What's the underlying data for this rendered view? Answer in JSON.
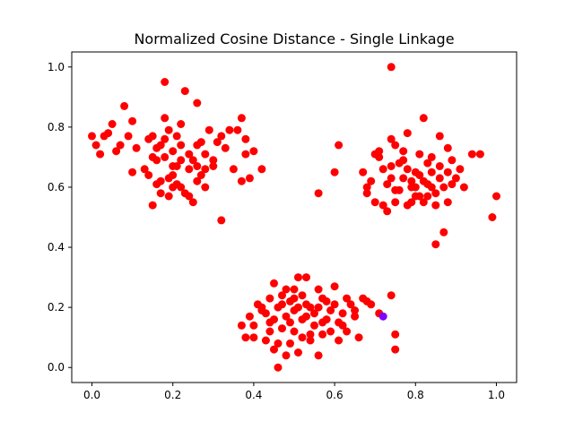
{
  "chart_data": {
    "type": "scatter",
    "title": "Normalized Cosine Distance - Single Linkage",
    "xlabel": "",
    "ylabel": "",
    "xlim": [
      -0.05,
      1.05
    ],
    "ylim": [
      -0.05,
      1.05
    ],
    "xticks": [
      "0.0",
      "0.2",
      "0.4",
      "0.6",
      "0.8",
      "1.0"
    ],
    "yticks": [
      "0.0",
      "0.2",
      "0.4",
      "0.6",
      "0.8",
      "1.0"
    ],
    "grid": false,
    "legend": "none",
    "series": [
      {
        "color": "#ff0000",
        "points": [
          [
            0.0,
            0.77
          ],
          [
            0.01,
            0.74
          ],
          [
            0.02,
            0.71
          ],
          [
            0.03,
            0.77
          ],
          [
            0.04,
            0.78
          ],
          [
            0.05,
            0.81
          ],
          [
            0.06,
            0.72
          ],
          [
            0.07,
            0.74
          ],
          [
            0.08,
            0.87
          ],
          [
            0.09,
            0.77
          ],
          [
            0.1,
            0.82
          ],
          [
            0.11,
            0.73
          ],
          [
            0.1,
            0.65
          ],
          [
            0.13,
            0.66
          ],
          [
            0.14,
            0.76
          ],
          [
            0.15,
            0.7
          ],
          [
            0.15,
            0.77
          ],
          [
            0.16,
            0.69
          ],
          [
            0.17,
            0.62
          ],
          [
            0.18,
            0.83
          ],
          [
            0.18,
            0.95
          ],
          [
            0.19,
            0.79
          ],
          [
            0.2,
            0.72
          ],
          [
            0.2,
            0.67
          ],
          [
            0.21,
            0.77
          ],
          [
            0.22,
            0.74
          ],
          [
            0.22,
            0.81
          ],
          [
            0.23,
            0.92
          ],
          [
            0.24,
            0.66
          ],
          [
            0.25,
            0.69
          ],
          [
            0.26,
            0.88
          ],
          [
            0.27,
            0.64
          ],
          [
            0.27,
            0.75
          ],
          [
            0.28,
            0.71
          ],
          [
            0.29,
            0.79
          ],
          [
            0.3,
            0.67
          ],
          [
            0.31,
            0.75
          ],
          [
            0.32,
            0.77
          ],
          [
            0.33,
            0.73
          ],
          [
            0.34,
            0.79
          ],
          [
            0.35,
            0.66
          ],
          [
            0.36,
            0.79
          ],
          [
            0.37,
            0.62
          ],
          [
            0.37,
            0.83
          ],
          [
            0.38,
            0.71
          ],
          [
            0.38,
            0.76
          ],
          [
            0.39,
            0.63
          ],
          [
            0.4,
            0.72
          ],
          [
            0.42,
            0.66
          ],
          [
            0.32,
            0.49
          ],
          [
            0.15,
            0.54
          ],
          [
            0.16,
            0.61
          ],
          [
            0.17,
            0.58
          ],
          [
            0.19,
            0.57
          ],
          [
            0.2,
            0.6
          ],
          [
            0.21,
            0.61
          ],
          [
            0.23,
            0.58
          ],
          [
            0.25,
            0.55
          ],
          [
            0.26,
            0.62
          ],
          [
            0.14,
            0.64
          ],
          [
            0.16,
            0.73
          ],
          [
            0.18,
            0.76
          ],
          [
            0.2,
            0.64
          ],
          [
            0.22,
            0.69
          ],
          [
            0.24,
            0.71
          ],
          [
            0.26,
            0.74
          ],
          [
            0.28,
            0.6
          ],
          [
            0.3,
            0.69
          ],
          [
            0.18,
            0.7
          ],
          [
            0.22,
            0.6
          ],
          [
            0.24,
            0.57
          ],
          [
            0.26,
            0.67
          ],
          [
            0.28,
            0.66
          ],
          [
            0.19,
            0.63
          ],
          [
            0.17,
            0.74
          ],
          [
            0.21,
            0.67
          ],
          [
            0.74,
            1.0
          ],
          [
            0.56,
            0.58
          ],
          [
            0.6,
            0.65
          ],
          [
            0.61,
            0.74
          ],
          [
            0.67,
            0.65
          ],
          [
            0.68,
            0.58
          ],
          [
            0.68,
            0.6
          ],
          [
            0.69,
            0.62
          ],
          [
            0.7,
            0.55
          ],
          [
            0.71,
            0.72
          ],
          [
            0.71,
            0.7
          ],
          [
            0.72,
            0.66
          ],
          [
            0.73,
            0.52
          ],
          [
            0.74,
            0.67
          ],
          [
            0.74,
            0.76
          ],
          [
            0.75,
            0.55
          ],
          [
            0.76,
            0.59
          ],
          [
            0.77,
            0.63
          ],
          [
            0.77,
            0.69
          ],
          [
            0.78,
            0.54
          ],
          [
            0.78,
            0.78
          ],
          [
            0.79,
            0.6
          ],
          [
            0.8,
            0.65
          ],
          [
            0.81,
            0.57
          ],
          [
            0.81,
            0.71
          ],
          [
            0.82,
            0.62
          ],
          [
            0.82,
            0.83
          ],
          [
            0.83,
            0.57
          ],
          [
            0.83,
            0.68
          ],
          [
            0.84,
            0.6
          ],
          [
            0.85,
            0.54
          ],
          [
            0.85,
            0.41
          ],
          [
            0.86,
            0.67
          ],
          [
            0.86,
            0.77
          ],
          [
            0.87,
            0.45
          ],
          [
            0.87,
            0.6
          ],
          [
            0.88,
            0.73
          ],
          [
            0.89,
            0.61
          ],
          [
            0.9,
            0.63
          ],
          [
            0.92,
            0.6
          ],
          [
            0.94,
            0.71
          ],
          [
            0.96,
            0.71
          ],
          [
            0.99,
            0.5
          ],
          [
            1.0,
            0.57
          ],
          [
            0.91,
            0.66
          ],
          [
            0.88,
            0.55
          ],
          [
            0.84,
            0.65
          ],
          [
            0.79,
            0.62
          ],
          [
            0.76,
            0.68
          ],
          [
            0.74,
            0.63
          ],
          [
            0.72,
            0.54
          ],
          [
            0.7,
            0.71
          ],
          [
            0.75,
            0.59
          ],
          [
            0.8,
            0.57
          ],
          [
            0.83,
            0.61
          ],
          [
            0.86,
            0.63
          ],
          [
            0.89,
            0.69
          ],
          [
            0.77,
            0.72
          ],
          [
            0.81,
            0.64
          ],
          [
            0.85,
            0.58
          ],
          [
            0.79,
            0.55
          ],
          [
            0.73,
            0.61
          ],
          [
            0.82,
            0.55
          ],
          [
            0.88,
            0.65
          ],
          [
            0.84,
            0.7
          ],
          [
            0.78,
            0.66
          ],
          [
            0.75,
            0.74
          ],
          [
            0.8,
            0.6
          ],
          [
            0.37,
            0.14
          ],
          [
            0.38,
            0.1
          ],
          [
            0.39,
            0.17
          ],
          [
            0.4,
            0.1
          ],
          [
            0.41,
            0.21
          ],
          [
            0.42,
            0.19
          ],
          [
            0.43,
            0.09
          ],
          [
            0.44,
            0.15
          ],
          [
            0.44,
            0.23
          ],
          [
            0.45,
            0.06
          ],
          [
            0.45,
            0.28
          ],
          [
            0.46,
            0.0
          ],
          [
            0.46,
            0.2
          ],
          [
            0.47,
            0.24
          ],
          [
            0.48,
            0.04
          ],
          [
            0.48,
            0.17
          ],
          [
            0.49,
            0.08
          ],
          [
            0.49,
            0.22
          ],
          [
            0.5,
            0.12
          ],
          [
            0.5,
            0.26
          ],
          [
            0.51,
            0.05
          ],
          [
            0.51,
            0.3
          ],
          [
            0.52,
            0.1
          ],
          [
            0.52,
            0.16
          ],
          [
            0.53,
            0.3
          ],
          [
            0.54,
            0.09
          ],
          [
            0.54,
            0.2
          ],
          [
            0.55,
            0.18
          ],
          [
            0.56,
            0.04
          ],
          [
            0.56,
            0.26
          ],
          [
            0.57,
            0.23
          ],
          [
            0.58,
            0.16
          ],
          [
            0.59,
            0.12
          ],
          [
            0.6,
            0.27
          ],
          [
            0.61,
            0.09
          ],
          [
            0.62,
            0.18
          ],
          [
            0.62,
            0.14
          ],
          [
            0.63,
            0.23
          ],
          [
            0.64,
            0.21
          ],
          [
            0.65,
            0.19
          ],
          [
            0.66,
            0.1
          ],
          [
            0.67,
            0.23
          ],
          [
            0.68,
            0.22
          ],
          [
            0.69,
            0.21
          ],
          [
            0.71,
            0.18
          ],
          [
            0.74,
            0.24
          ],
          [
            0.75,
            0.11
          ],
          [
            0.75,
            0.06
          ],
          [
            0.43,
            0.18
          ],
          [
            0.47,
            0.13
          ],
          [
            0.5,
            0.19
          ],
          [
            0.53,
            0.21
          ],
          [
            0.55,
            0.14
          ],
          [
            0.57,
            0.11
          ],
          [
            0.59,
            0.19
          ],
          [
            0.61,
            0.15
          ],
          [
            0.63,
            0.12
          ],
          [
            0.45,
            0.16
          ],
          [
            0.48,
            0.26
          ],
          [
            0.52,
            0.24
          ],
          [
            0.54,
            0.11
          ],
          [
            0.56,
            0.2
          ],
          [
            0.58,
            0.22
          ],
          [
            0.4,
            0.14
          ],
          [
            0.44,
            0.12
          ],
          [
            0.46,
            0.08
          ],
          [
            0.49,
            0.15
          ],
          [
            0.51,
            0.2
          ],
          [
            0.53,
            0.17
          ],
          [
            0.57,
            0.15
          ],
          [
            0.6,
            0.21
          ],
          [
            0.65,
            0.17
          ],
          [
            0.42,
            0.2
          ],
          [
            0.47,
            0.21
          ],
          [
            0.5,
            0.23
          ]
        ]
      },
      {
        "color": "#8000ff",
        "points": [
          [
            0.72,
            0.17
          ]
        ]
      }
    ]
  }
}
